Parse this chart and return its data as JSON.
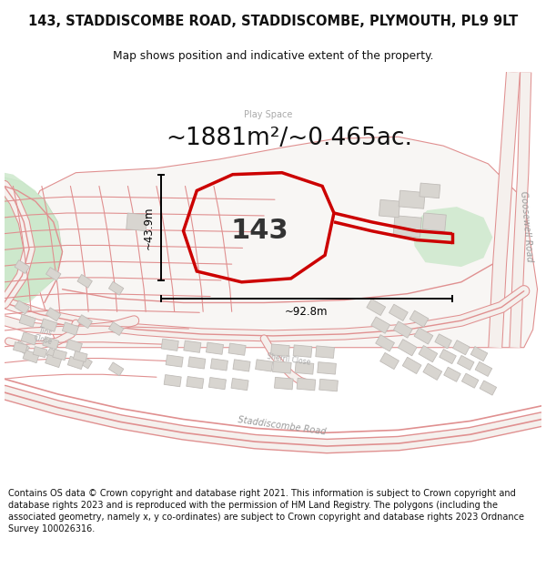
{
  "title": "143, STADDISCOMBE ROAD, STADDISCOMBE, PLYMOUTH, PL9 9LT",
  "subtitle": "Map shows position and indicative extent of the property.",
  "area_text": "~1881m²/~0.465ac.",
  "label_143": "143",
  "dim_width": "~92.8m",
  "dim_height": "~43.9m",
  "footer": "Contains OS data © Crown copyright and database right 2021. This information is subject to Crown copyright and database rights 2023 and is reproduced with the permission of HM Land Registry. The polygons (including the associated geometry, namely x, y co-ordinates) are subject to Crown copyright and database rights 2023 Ordnance Survey 100026316.",
  "map_bg": "#f2eeea",
  "road_color": "#e8b0b0",
  "road_stroke": "#e09090",
  "green_color": "#cde8cc",
  "green_edge": "#b8d8b8",
  "white_area": "#f8f6f4",
  "grey_bld": "#d8d5d0",
  "grey_bld_edge": "#c0bcb8",
  "red_poly": "#cc0000",
  "dim_color": "#111111",
  "title_color": "#111111",
  "footer_color": "#111111",
  "play_space_color": "#aaaaaa",
  "road_label_color": "#999999",
  "title_fontsize": 10.5,
  "subtitle_fontsize": 8.8,
  "area_fontsize": 19,
  "label_fontsize": 22,
  "dim_fontsize": 8.5,
  "play_fontsize": 7,
  "road_label_fontsize": 7,
  "footer_fontsize": 7.0
}
